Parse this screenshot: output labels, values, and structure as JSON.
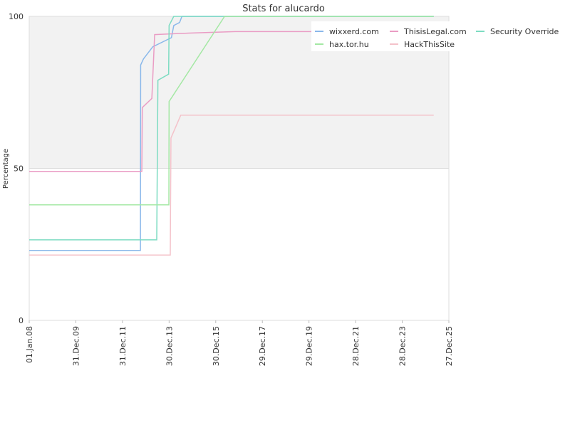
{
  "chart_data": {
    "type": "line",
    "title": "Stats for alucardo",
    "y_label": "Percentage",
    "xlim": [
      2008,
      2026
    ],
    "xticks": [
      {
        "value": 2008,
        "label": "01.Jan.08"
      },
      {
        "value": 2010,
        "label": "31.Dec.09"
      },
      {
        "value": 2012,
        "label": "31.Dec.11"
      },
      {
        "value": 2014,
        "label": "30.Dec.13"
      },
      {
        "value": 2016,
        "label": "30.Dec.15"
      },
      {
        "value": 2018,
        "label": "29.Dec.17"
      },
      {
        "value": 2020,
        "label": "29.Dec.19"
      },
      {
        "value": 2022,
        "label": "28.Dec.21"
      },
      {
        "value": 2024,
        "label": "28.Dec.23"
      },
      {
        "value": 2026,
        "label": "27.Dec.25"
      }
    ],
    "ylim": [
      0,
      100
    ],
    "yticks": [
      0,
      50,
      100
    ],
    "grid": true,
    "series": [
      {
        "name": "wixxerd.com",
        "color": "#8ab8ea",
        "x": [
          2008,
          2012.77,
          2012.78,
          2012.9,
          2013.3,
          2014.1,
          2014.2,
          2014.45,
          2014.55,
          2025.35
        ],
        "values": [
          23,
          23,
          84,
          86,
          90,
          93,
          97,
          98,
          100,
          100
        ]
      },
      {
        "name": "ThisisLegal.com",
        "color": "#ea9cc4",
        "x": [
          2008,
          2012.83,
          2012.85,
          2013.26,
          2013.38,
          2014.85,
          2016.84,
          2025.35
        ],
        "values": [
          49,
          49,
          70,
          73,
          94,
          94.5,
          95,
          95
        ]
      },
      {
        "name": "Security Override",
        "color": "#7ddcc2",
        "x": [
          2008,
          2013.47,
          2013.52,
          2013.98,
          2014.0,
          2014.2,
          2025.35
        ],
        "values": [
          26.5,
          26.5,
          79,
          81,
          97,
          100,
          100
        ]
      },
      {
        "name": "hax.tor.hu",
        "color": "#a4e8a4",
        "x": [
          2008,
          2013.99,
          2014.0,
          2016.38,
          2025.35
        ],
        "values": [
          38,
          38,
          72,
          100,
          100
        ]
      },
      {
        "name": "HackThisSite",
        "color": "#f4c2ca",
        "x": [
          2008,
          2014.05,
          2014.08,
          2014.5,
          2025.35
        ],
        "values": [
          21.5,
          21.5,
          60,
          67.5,
          67.5
        ]
      }
    ]
  }
}
